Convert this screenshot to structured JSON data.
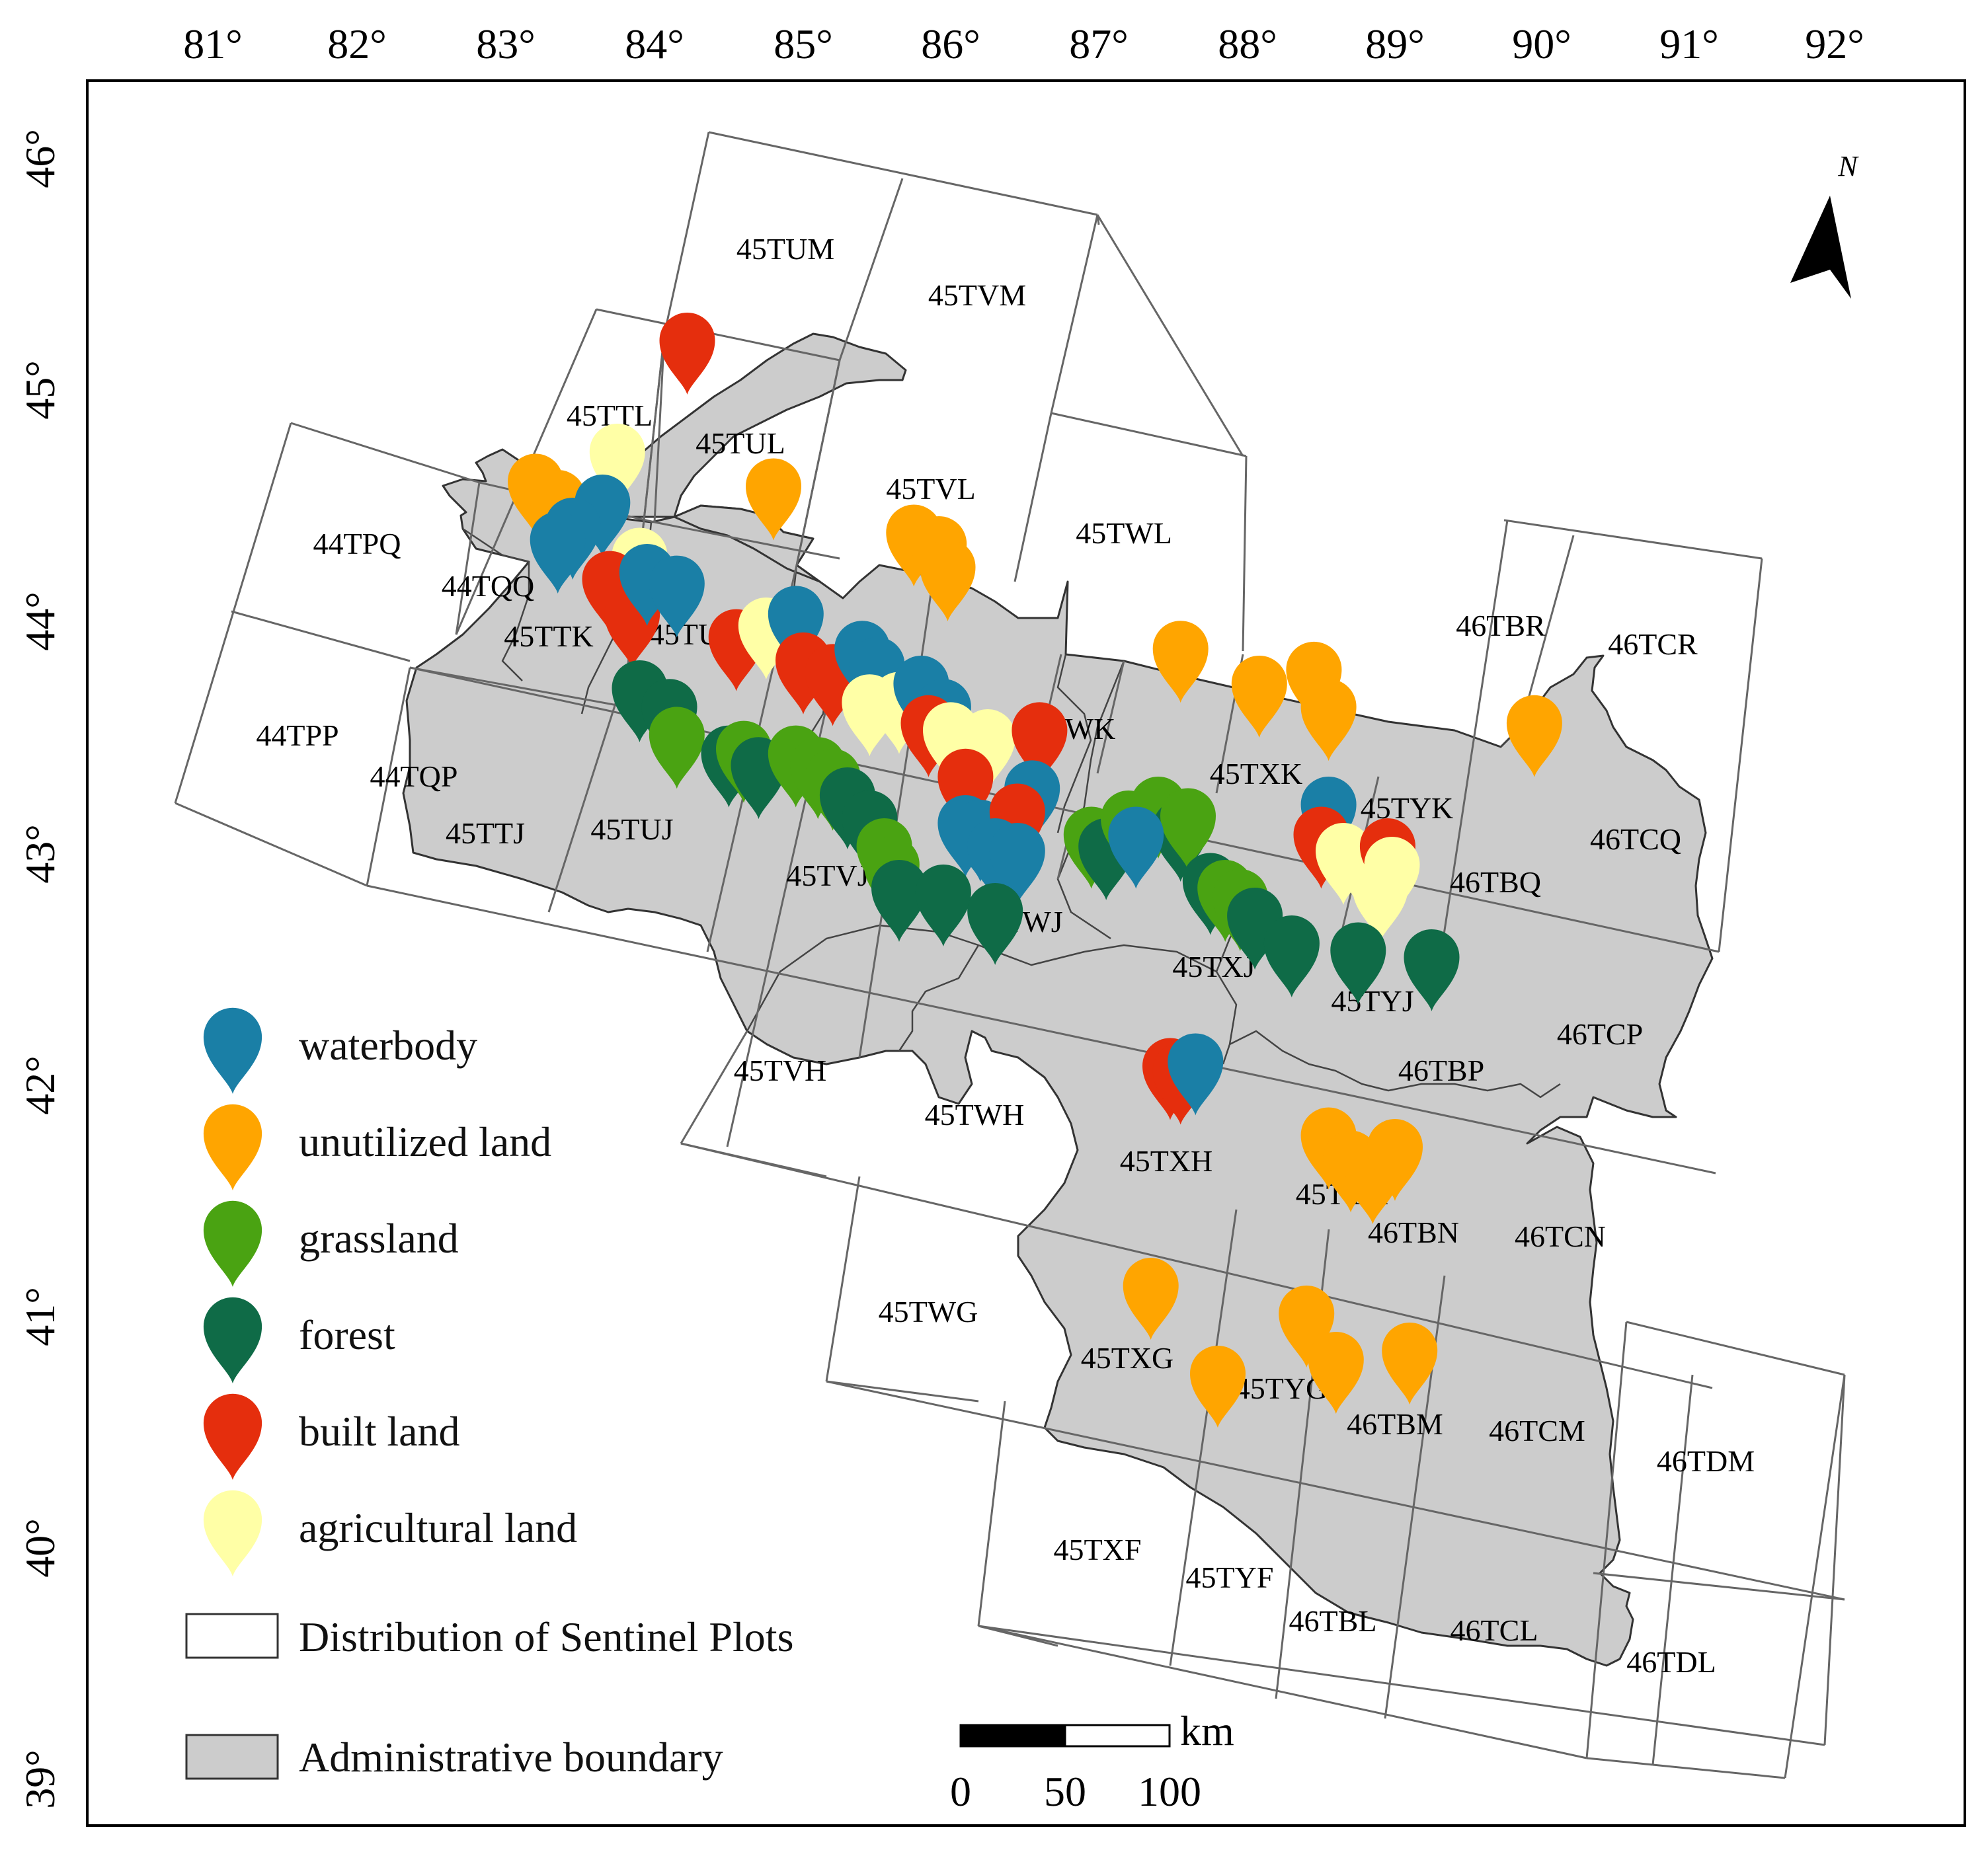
{
  "longitude_labels": [
    "81°",
    "82°",
    "83°",
    "84°",
    "85°",
    "86°",
    "87°",
    "88°",
    "89°",
    "90°",
    "91°",
    "92°"
  ],
  "latitude_labels": [
    "46°",
    "45°",
    "44°",
    "43°",
    "42°",
    "41°",
    "40°",
    "39°"
  ],
  "north_arrow": {
    "label": "N"
  },
  "tiles": [
    "45TUM",
    "45TVM",
    "45TTL",
    "45TUL",
    "45TVL",
    "45TWL",
    "44TPQ",
    "44TQQ",
    "45TTK",
    "45TUK",
    "45TVK",
    "45TWK",
    "45TXK",
    "45TYK",
    "46TBR",
    "46TCR",
    "44TPP",
    "44TQP",
    "45TTJ",
    "45TUJ",
    "45TVJ",
    "45TWJ",
    "45TXJ",
    "45TYJ",
    "46TBQ",
    "46TCQ",
    "46TBP",
    "46TCP",
    "45TVH",
    "45TWH",
    "45TXH",
    "45TYH",
    "46TBN",
    "46TCN",
    "45TWG",
    "45TXG",
    "45TYG",
    "46TBM",
    "46TCM",
    "46TDM",
    "45TXF",
    "45TYF",
    "46TBL",
    "46TCL",
    "46TDL"
  ],
  "legend": {
    "categories": [
      {
        "key": "waterbody",
        "label": "waterbody",
        "color": "#1a7fa6"
      },
      {
        "key": "unutilized",
        "label": "unutilized land",
        "color": "#ffa500"
      },
      {
        "key": "grassland",
        "label": "grassland",
        "color": "#4aa312"
      },
      {
        "key": "forest",
        "label": "forest",
        "color": "#0f6b47"
      },
      {
        "key": "built",
        "label": "built land",
        "color": "#e52e0d"
      },
      {
        "key": "agricultural",
        "label": "agricultural land",
        "color": "#ffffa6"
      }
    ],
    "sentinel_label": "Distribution of Sentinel Plots",
    "admin_label": "Administrative boundary"
  },
  "scale_bar": {
    "unit": "km",
    "ticks": [
      "0",
      "50",
      "100"
    ]
  },
  "colors": {
    "admin_fill": "#cccccc",
    "tile_stroke": "#666666",
    "frame": "#000000"
  },
  "sample_points": [
    {
      "cat": "built",
      "lon": 84.22,
      "lat": 44.98
    },
    {
      "cat": "agricultural",
      "lon": 83.75,
      "lat": 44.5
    },
    {
      "cat": "unutilized",
      "lon": 83.2,
      "lat": 44.37
    },
    {
      "cat": "unutilized",
      "lon": 83.35,
      "lat": 44.3
    },
    {
      "cat": "waterbody",
      "lon": 83.65,
      "lat": 44.28
    },
    {
      "cat": "waterbody",
      "lon": 83.45,
      "lat": 44.18
    },
    {
      "cat": "waterbody",
      "lon": 83.35,
      "lat": 44.12
    },
    {
      "cat": "agricultural",
      "lon": 83.9,
      "lat": 44.05
    },
    {
      "cat": "built",
      "lon": 83.7,
      "lat": 43.95
    },
    {
      "cat": "built",
      "lon": 83.85,
      "lat": 43.8
    },
    {
      "cat": "waterbody",
      "lon": 83.95,
      "lat": 43.98
    },
    {
      "cat": "waterbody",
      "lon": 84.15,
      "lat": 43.93
    },
    {
      "cat": "unutilized",
      "lon": 84.8,
      "lat": 44.35
    },
    {
      "cat": "unutilized",
      "lon": 85.75,
      "lat": 44.15
    },
    {
      "cat": "unutilized",
      "lon": 85.92,
      "lat": 44.1
    },
    {
      "cat": "unutilized",
      "lon": 85.98,
      "lat": 44.0
    },
    {
      "cat": "built",
      "lon": 84.55,
      "lat": 43.7
    },
    {
      "cat": "agricultural",
      "lon": 84.75,
      "lat": 43.75
    },
    {
      "cat": "waterbody",
      "lon": 84.95,
      "lat": 43.8
    },
    {
      "cat": "built",
      "lon": 85.0,
      "lat": 43.6
    },
    {
      "cat": "built",
      "lon": 85.2,
      "lat": 43.55
    },
    {
      "cat": "waterbody",
      "lon": 85.4,
      "lat": 43.65
    },
    {
      "cat": "waterbody",
      "lon": 85.5,
      "lat": 43.58
    },
    {
      "cat": "agricultural",
      "lon": 85.45,
      "lat": 43.42
    },
    {
      "cat": "agricultural",
      "lon": 85.65,
      "lat": 43.43
    },
    {
      "cat": "waterbody",
      "lon": 85.8,
      "lat": 43.5
    },
    {
      "cat": "waterbody",
      "lon": 85.95,
      "lat": 43.4
    },
    {
      "cat": "built",
      "lon": 85.85,
      "lat": 43.33
    },
    {
      "cat": "agricultural",
      "lon": 86.0,
      "lat": 43.3
    },
    {
      "cat": "agricultural",
      "lon": 86.25,
      "lat": 43.27
    },
    {
      "cat": "built",
      "lon": 86.6,
      "lat": 43.3
    },
    {
      "cat": "built",
      "lon": 86.1,
      "lat": 43.1
    },
    {
      "cat": "waterbody",
      "lon": 86.55,
      "lat": 43.05
    },
    {
      "cat": "waterbody",
      "lon": 86.1,
      "lat": 42.9
    },
    {
      "cat": "waterbody",
      "lon": 86.2,
      "lat": 42.88
    },
    {
      "cat": "built",
      "lon": 86.45,
      "lat": 42.95
    },
    {
      "cat": "waterbody",
      "lon": 86.3,
      "lat": 42.8
    },
    {
      "cat": "waterbody",
      "lon": 86.45,
      "lat": 42.78
    },
    {
      "cat": "forest",
      "lon": 83.9,
      "lat": 43.48
    },
    {
      "cat": "forest",
      "lon": 84.1,
      "lat": 43.4
    },
    {
      "cat": "grassland",
      "lon": 84.15,
      "lat": 43.28
    },
    {
      "cat": "forest",
      "lon": 84.5,
      "lat": 43.2
    },
    {
      "cat": "grassland",
      "lon": 84.6,
      "lat": 43.22
    },
    {
      "cat": "forest",
      "lon": 84.7,
      "lat": 43.15
    },
    {
      "cat": "grassland",
      "lon": 84.95,
      "lat": 43.2
    },
    {
      "cat": "grassland",
      "lon": 85.1,
      "lat": 43.15
    },
    {
      "cat": "grassland",
      "lon": 85.2,
      "lat": 43.1
    },
    {
      "cat": "forest",
      "lon": 85.3,
      "lat": 43.02
    },
    {
      "cat": "forest",
      "lon": 85.45,
      "lat": 42.92
    },
    {
      "cat": "grassland",
      "lon": 85.55,
      "lat": 42.8
    },
    {
      "cat": "grassland",
      "lon": 85.6,
      "lat": 42.72
    },
    {
      "cat": "forest",
      "lon": 85.65,
      "lat": 42.62
    },
    {
      "cat": "forest",
      "lon": 85.95,
      "lat": 42.6
    },
    {
      "cat": "forest",
      "lon": 86.3,
      "lat": 42.52
    },
    {
      "cat": "grassland",
      "lon": 86.95,
      "lat": 42.85
    },
    {
      "cat": "forest",
      "lon": 87.05,
      "lat": 42.8
    },
    {
      "cat": "grassland",
      "lon": 87.2,
      "lat": 42.92
    },
    {
      "cat": "grassland",
      "lon": 87.4,
      "lat": 42.98
    },
    {
      "cat": "forest",
      "lon": 87.55,
      "lat": 42.88
    },
    {
      "cat": "grassland",
      "lon": 87.6,
      "lat": 42.93
    },
    {
      "cat": "waterbody",
      "lon": 87.25,
      "lat": 42.85
    },
    {
      "cat": "unutilized",
      "lon": 87.55,
      "lat": 43.65
    },
    {
      "cat": "unutilized",
      "lon": 88.08,
      "lat": 43.5
    },
    {
      "cat": "unutilized",
      "lon": 88.45,
      "lat": 43.56
    },
    {
      "cat": "unutilized",
      "lon": 88.55,
      "lat": 43.4
    },
    {
      "cat": "unutilized",
      "lon": 89.95,
      "lat": 43.33
    },
    {
      "cat": "waterbody",
      "lon": 88.55,
      "lat": 42.98
    },
    {
      "cat": "built",
      "lon": 88.5,
      "lat": 42.85
    },
    {
      "cat": "agricultural",
      "lon": 88.65,
      "lat": 42.78
    },
    {
      "cat": "agricultural",
      "lon": 88.82,
      "lat": 42.72
    },
    {
      "cat": "agricultural",
      "lon": 88.9,
      "lat": 42.62
    },
    {
      "cat": "built",
      "lon": 88.95,
      "lat": 42.8
    },
    {
      "cat": "agricultural",
      "lon": 88.98,
      "lat": 42.72
    },
    {
      "cat": "forest",
      "lon": 87.75,
      "lat": 42.65
    },
    {
      "cat": "grassland",
      "lon": 87.85,
      "lat": 42.62
    },
    {
      "cat": "grassland",
      "lon": 87.95,
      "lat": 42.58
    },
    {
      "cat": "forest",
      "lon": 88.05,
      "lat": 42.5
    },
    {
      "cat": "forest",
      "lon": 88.3,
      "lat": 42.38
    },
    {
      "cat": "forest",
      "lon": 88.75,
      "lat": 42.35
    },
    {
      "cat": "forest",
      "lon": 89.25,
      "lat": 42.32
    },
    {
      "cat": "built",
      "lon": 87.48,
      "lat": 41.85
    },
    {
      "cat": "built",
      "lon": 87.55,
      "lat": 41.83
    },
    {
      "cat": "waterbody",
      "lon": 87.65,
      "lat": 41.87
    },
    {
      "cat": "unutilized",
      "lon": 88.55,
      "lat": 41.55
    },
    {
      "cat": "unutilized",
      "lon": 88.7,
      "lat": 41.45
    },
    {
      "cat": "unutilized",
      "lon": 88.85,
      "lat": 41.4
    },
    {
      "cat": "unutilized",
      "lon": 89.0,
      "lat": 41.5
    },
    {
      "cat": "unutilized",
      "lon": 87.35,
      "lat": 40.9
    },
    {
      "cat": "unutilized",
      "lon": 88.4,
      "lat": 40.78
    },
    {
      "cat": "unutilized",
      "lon": 88.6,
      "lat": 40.58
    },
    {
      "cat": "unutilized",
      "lon": 89.1,
      "lat": 40.62
    },
    {
      "cat": "unutilized",
      "lon": 87.8,
      "lat": 40.52
    }
  ]
}
